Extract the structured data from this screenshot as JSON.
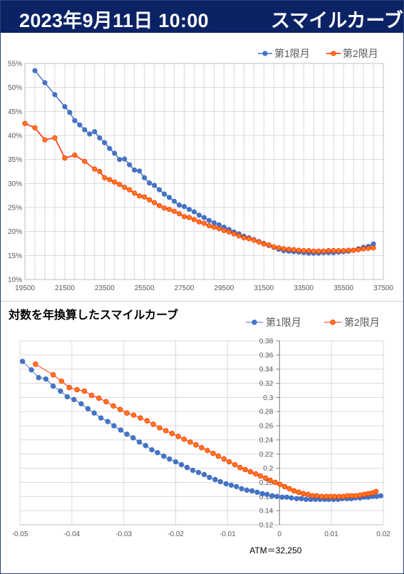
{
  "header": {
    "date": "2023年9月11日 10:00",
    "title": "スマイルカーブ"
  },
  "colors": {
    "series1": "#4472C4",
    "series2": "#FF2A00",
    "series2_fill": "#FF7A1A",
    "header_bg": "#0b2265"
  },
  "chart_data": [
    {
      "type": "line",
      "title": "",
      "xlabel": "",
      "ylabel": "",
      "xlim": [
        19500,
        37500
      ],
      "ylim": [
        10,
        55
      ],
      "xticks": [
        "19500",
        "21500",
        "23500",
        "25500",
        "27500",
        "29500",
        "31500",
        "33500",
        "35500",
        "37500"
      ],
      "yticks": [
        "10%",
        "15%",
        "20%",
        "25%",
        "30%",
        "35%",
        "40%",
        "45%",
        "50%",
        "55%"
      ],
      "legend": "top-right",
      "series": [
        {
          "name": "第1限月",
          "x": [
            20000,
            20500,
            21000,
            21500,
            21750,
            22000,
            22250,
            22500,
            22750,
            23000,
            23250,
            23500,
            23750,
            24000,
            24250,
            24500,
            24750,
            25000,
            25250,
            25500,
            25750,
            26000,
            26250,
            26500,
            26750,
            27000,
            27250,
            27500,
            27750,
            28000,
            28250,
            28500,
            28750,
            29000,
            29250,
            29500,
            29750,
            30000,
            30250,
            30500,
            30750,
            31000,
            31250,
            31500,
            31750,
            32000,
            32250,
            32500,
            32750,
            33000,
            33250,
            33500,
            33750,
            34000,
            34250,
            34500,
            34750,
            35000,
            35250,
            35500,
            35750,
            36000,
            36250,
            36500,
            36750,
            37000
          ],
          "y": [
            53.5,
            51.0,
            48.5,
            46.0,
            44.8,
            43.1,
            42.2,
            41.2,
            40.3,
            40.8,
            39.5,
            38.5,
            37.3,
            36.3,
            35.0,
            35.1,
            33.9,
            32.8,
            32.6,
            31.2,
            30.1,
            29.6,
            28.7,
            27.8,
            27.1,
            26.3,
            25.5,
            25.2,
            24.6,
            24.1,
            23.4,
            22.9,
            22.3,
            21.8,
            21.4,
            20.9,
            20.4,
            19.9,
            19.5,
            19.0,
            18.7,
            18.3,
            17.9,
            17.5,
            17.1,
            16.7,
            16.3,
            16.0,
            15.9,
            15.8,
            15.7,
            15.6,
            15.5,
            15.5,
            15.5,
            15.6,
            15.6,
            15.6,
            15.7,
            15.8,
            15.9,
            16.1,
            16.4,
            16.7,
            16.9,
            17.4
          ]
        },
        {
          "name": "第2限月",
          "x": [
            19500,
            20000,
            20500,
            21000,
            21500,
            22000,
            22500,
            23000,
            23250,
            23500,
            23750,
            24000,
            24250,
            24500,
            24750,
            25000,
            25250,
            25500,
            25750,
            26000,
            26250,
            26500,
            26750,
            27000,
            27250,
            27500,
            27750,
            28000,
            28250,
            28500,
            28750,
            29000,
            29250,
            29500,
            29750,
            30000,
            30250,
            30500,
            30750,
            31000,
            31250,
            31500,
            31750,
            32000,
            32250,
            32500,
            32750,
            33000,
            33250,
            33500,
            33750,
            34000,
            34250,
            34500,
            34750,
            35000,
            35250,
            35500,
            35750,
            36000,
            36250,
            36500,
            36750,
            37000
          ],
          "y": [
            42.5,
            41.6,
            39.1,
            39.5,
            35.3,
            35.9,
            34.6,
            33.0,
            32.5,
            31.2,
            30.8,
            30.3,
            29.8,
            29.2,
            28.7,
            28.0,
            27.4,
            27.2,
            26.6,
            26.0,
            25.4,
            24.9,
            24.6,
            24.2,
            23.7,
            23.1,
            22.9,
            22.5,
            22.0,
            21.7,
            21.2,
            20.9,
            20.6,
            20.2,
            19.9,
            19.5,
            19.1,
            18.7,
            18.5,
            18.2,
            17.8,
            17.4,
            17.2,
            16.8,
            16.6,
            16.4,
            16.3,
            16.2,
            16.1,
            16.0,
            16.0,
            15.9,
            15.9,
            15.9,
            16.0,
            16.0,
            16.0,
            16.0,
            16.1,
            16.1,
            16.2,
            16.4,
            16.5,
            16.6
          ]
        }
      ]
    },
    {
      "type": "scatter",
      "title": "対数を年換算したスマイルカーブ",
      "xlabel": "",
      "ylabel": "",
      "xlim": [
        -0.05,
        0.02
      ],
      "ylim": [
        0.12,
        0.38
      ],
      "xticks": [
        "-0.05",
        "-0.04",
        "-0.03",
        "-0.02",
        "-0.01",
        "0",
        "0.01",
        "0.02"
      ],
      "yticks": [
        "0.12",
        "0.14",
        "0.16",
        "0.18",
        "0.2",
        "0.22",
        "0.24",
        "0.26",
        "0.28",
        "0.3",
        "0.32",
        "0.34",
        "0.36",
        "0.38"
      ],
      "legend": "top-right",
      "annotation": "ATM＝32,250",
      "series": [
        {
          "name": "第1限月",
          "x": [
            -0.0495,
            -0.0478,
            -0.0464,
            -0.045,
            -0.0436,
            -0.0422,
            -0.0409,
            -0.0396,
            -0.0382,
            -0.0369,
            -0.0357,
            -0.0344,
            -0.0331,
            -0.0319,
            -0.0306,
            -0.0294,
            -0.0282,
            -0.027,
            -0.0258,
            -0.0246,
            -0.0235,
            -0.0223,
            -0.0212,
            -0.02,
            -0.0189,
            -0.0178,
            -0.0167,
            -0.0156,
            -0.0145,
            -0.0135,
            -0.0124,
            -0.0114,
            -0.0103,
            -0.0093,
            -0.0083,
            -0.0073,
            -0.0063,
            -0.0053,
            -0.0043,
            -0.0033,
            -0.0024,
            -0.0014,
            -0.0005,
            0.0005,
            0.0014,
            0.0023,
            0.0033,
            0.0042,
            0.0051,
            0.006,
            0.0069,
            0.0078,
            0.0087,
            0.0095,
            0.0104,
            0.0113,
            0.0121,
            0.013,
            0.0138,
            0.0146,
            0.0155,
            0.0163,
            0.0171,
            0.0179,
            0.0187,
            0.0195
          ],
          "y": [
            0.351,
            0.339,
            0.328,
            0.326,
            0.316,
            0.309,
            0.301,
            0.297,
            0.291,
            0.284,
            0.278,
            0.271,
            0.266,
            0.26,
            0.254,
            0.248,
            0.243,
            0.237,
            0.232,
            0.226,
            0.222,
            0.217,
            0.213,
            0.209,
            0.205,
            0.201,
            0.197,
            0.194,
            0.191,
            0.187,
            0.184,
            0.181,
            0.178,
            0.176,
            0.174,
            0.171,
            0.169,
            0.168,
            0.166,
            0.164,
            0.163,
            0.161,
            0.16,
            0.159,
            0.159,
            0.158,
            0.157,
            0.157,
            0.156,
            0.156,
            0.156,
            0.156,
            0.156,
            0.156,
            0.156,
            0.156,
            0.157,
            0.157,
            0.157,
            0.158,
            0.158,
            0.159,
            0.159,
            0.16,
            0.16,
            0.161
          ]
        },
        {
          "name": "第2限月",
          "x": [
            -0.047,
            -0.0436,
            -0.042,
            -0.0405,
            -0.039,
            -0.0376,
            -0.0362,
            -0.0348,
            -0.0334,
            -0.032,
            -0.0307,
            -0.0294,
            -0.0281,
            -0.0268,
            -0.0255,
            -0.0243,
            -0.0231,
            -0.0219,
            -0.0207,
            -0.0195,
            -0.0184,
            -0.0172,
            -0.0161,
            -0.015,
            -0.0139,
            -0.0128,
            -0.0118,
            -0.0107,
            -0.0097,
            -0.0086,
            -0.0076,
            -0.0066,
            -0.0056,
            -0.0046,
            -0.0037,
            -0.0027,
            -0.0018,
            -0.0008,
            0.0001,
            0.001,
            0.0019,
            0.0028,
            0.0037,
            0.0046,
            0.0055,
            0.0064,
            0.0072,
            0.0081,
            0.009,
            0.0098,
            0.0106,
            0.0115,
            0.0123,
            0.0131,
            0.0139,
            0.0147,
            0.0155,
            0.0163,
            0.0171,
            0.0179,
            0.0186
          ],
          "y": [
            0.347,
            0.332,
            0.323,
            0.314,
            0.311,
            0.309,
            0.303,
            0.299,
            0.294,
            0.288,
            0.283,
            0.278,
            0.275,
            0.271,
            0.267,
            0.262,
            0.257,
            0.253,
            0.249,
            0.245,
            0.241,
            0.237,
            0.233,
            0.229,
            0.225,
            0.221,
            0.217,
            0.213,
            0.209,
            0.205,
            0.201,
            0.198,
            0.195,
            0.192,
            0.189,
            0.186,
            0.183,
            0.18,
            0.177,
            0.174,
            0.171,
            0.168,
            0.166,
            0.164,
            0.163,
            0.161,
            0.161,
            0.16,
            0.16,
            0.16,
            0.16,
            0.16,
            0.16,
            0.161,
            0.161,
            0.161,
            0.162,
            0.163,
            0.164,
            0.165,
            0.167
          ]
        }
      ]
    }
  ]
}
